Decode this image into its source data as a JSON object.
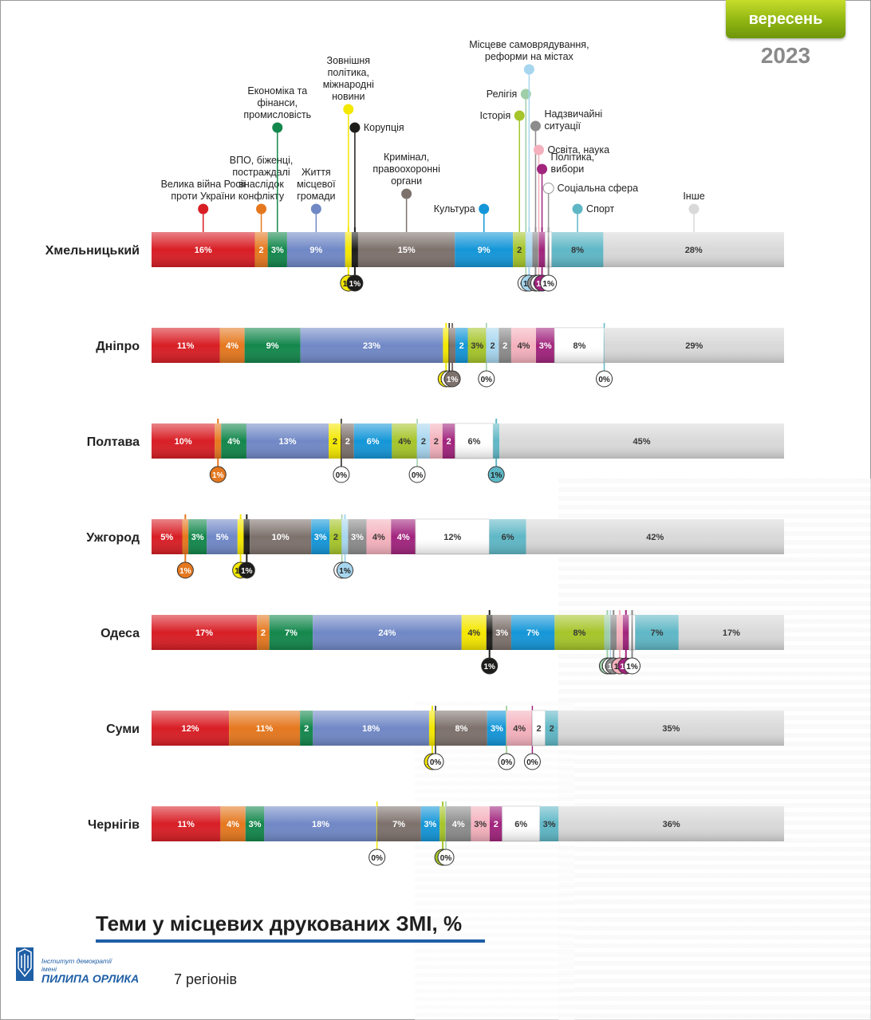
{
  "header": {
    "month": "вересень",
    "year": "2023"
  },
  "title": "Теми у місцевих друкованих ЗМІ, %",
  "subtitle": "7 регіонів",
  "logo": {
    "line1": "Інститут демократії",
    "line2": "імені",
    "name": "ПИЛИПА ОРЛИКА"
  },
  "colors": {
    "war": "#d81e25",
    "vpo": "#e5781f",
    "economy": "#13874c",
    "community": "#7088c6",
    "foreign": "#f4e700",
    "corruption": "#1d1d1b",
    "crime": "#7d716c",
    "culture": "#1496d8",
    "history": "#a6c52a",
    "religion": "#9fcfa8",
    "selfgov": "#a7d6ef",
    "emergency": "#8c8c8c",
    "education": "#f4b1bd",
    "politics": "#a1247d",
    "social": "#ffffff",
    "sport": "#5fb7c6",
    "other": "#d9d9d9"
  },
  "chart_data": {
    "type": "bar",
    "stacked": true,
    "orientation": "horizontal",
    "title": "Теми у місцевих друкованих ЗМІ, %",
    "subtitle": "7 регіонів",
    "legend": [
      {
        "key": "war",
        "label": "Велика війна Росії проти України"
      },
      {
        "key": "vpo",
        "label": "ВПО, біженці, постраждалі внаслідок конфлікту"
      },
      {
        "key": "economy",
        "label": "Економіка та фінанси, промисловість"
      },
      {
        "key": "community",
        "label": "Життя місцевої громади"
      },
      {
        "key": "foreign",
        "label": "Зовнішня політика, міжнародні новини"
      },
      {
        "key": "corruption",
        "label": "Корупція"
      },
      {
        "key": "crime",
        "label": "Кримінал, правоохоронні органи"
      },
      {
        "key": "culture",
        "label": "Культура"
      },
      {
        "key": "history",
        "label": "Історія"
      },
      {
        "key": "religion",
        "label": "Релігія"
      },
      {
        "key": "selfgov",
        "label": "Місцеве самоврядування, реформи на містах"
      },
      {
        "key": "emergency",
        "label": "Надзвичайні ситуації"
      },
      {
        "key": "education",
        "label": "Освіта, наука"
      },
      {
        "key": "politics",
        "label": "Політика, вибори"
      },
      {
        "key": "social",
        "label": "Соціальна сфера"
      },
      {
        "key": "sport",
        "label": "Спорт"
      },
      {
        "key": "other",
        "label": "Інше"
      }
    ],
    "categories": [
      "Хмельницький",
      "Дніпро",
      "Полтава",
      "Ужгород",
      "Одеса",
      "Суми",
      "Чернігів"
    ],
    "series": [
      {
        "key": "war",
        "values": [
          16,
          11,
          10,
          5,
          17,
          12,
          11
        ]
      },
      {
        "key": "vpo",
        "values": [
          2,
          4,
          1,
          1,
          2,
          11,
          4
        ]
      },
      {
        "key": "economy",
        "values": [
          3,
          9,
          4,
          3,
          7,
          2,
          3
        ]
      },
      {
        "key": "community",
        "values": [
          9,
          23,
          13,
          5,
          24,
          18,
          18
        ]
      },
      {
        "key": "foreign",
        "values": [
          1,
          1,
          2,
          1,
          4,
          1,
          0
        ]
      },
      {
        "key": "corruption",
        "values": [
          1,
          0,
          0,
          1,
          1,
          0,
          0
        ]
      },
      {
        "key": "crime",
        "values": [
          15,
          1,
          2,
          10,
          3,
          8,
          7
        ]
      },
      {
        "key": "culture",
        "values": [
          9,
          2,
          6,
          3,
          7,
          3,
          3
        ]
      },
      {
        "key": "history",
        "values": [
          2,
          3,
          4,
          2,
          8,
          0,
          1
        ]
      },
      {
        "key": "religion",
        "values": [
          0,
          0,
          0,
          0,
          1,
          0,
          0
        ]
      },
      {
        "key": "selfgov",
        "values": [
          1,
          2,
          2,
          1,
          0,
          0,
          0
        ]
      },
      {
        "key": "emergency",
        "values": [
          1,
          2,
          0,
          3,
          1,
          0,
          4
        ]
      },
      {
        "key": "education",
        "values": [
          0,
          4,
          2,
          4,
          1,
          4,
          3
        ]
      },
      {
        "key": "politics",
        "values": [
          1,
          3,
          2,
          4,
          1,
          0,
          2
        ]
      },
      {
        "key": "social",
        "values": [
          1,
          8,
          6,
          12,
          1,
          2,
          6
        ]
      },
      {
        "key": "sport",
        "values": [
          8,
          0,
          1,
          6,
          7,
          2,
          3
        ]
      },
      {
        "key": "other",
        "values": [
          28,
          29,
          45,
          42,
          17,
          35,
          36
        ]
      }
    ],
    "labels": [
      [
        "16%",
        "2",
        "3%",
        "9%",
        "1%",
        "1%",
        "15%",
        "9%",
        "2",
        "0%",
        "1%",
        "1%",
        "0%",
        "1%",
        "1%",
        "8%",
        "28%"
      ],
      [
        "11%",
        "4%",
        "9%",
        "23%",
        "1%",
        "0%",
        "1%",
        "2",
        "3%",
        "0%",
        "2",
        "2",
        "4%",
        "3%",
        "8%",
        "0%",
        "29%"
      ],
      [
        "10%",
        "1%",
        "4%",
        "13%",
        "2",
        "0%",
        "2",
        "6%",
        "4%",
        "0%",
        "2",
        "",
        "2",
        "2",
        "6%",
        "1%",
        "45%"
      ],
      [
        "5%",
        "1%",
        "3%",
        "5%",
        "1%",
        "1%",
        "10%",
        "3%",
        "2",
        "0%",
        "1%",
        "3%",
        "4%",
        "4%",
        "12%",
        "6%",
        "42%"
      ],
      [
        "17%",
        "2",
        "7%",
        "24%",
        "4%",
        "1%",
        "3%",
        "7%",
        "8%",
        "1%",
        "0%",
        "1%",
        "1%",
        "1%",
        "1%",
        "7%",
        "17%"
      ],
      [
        "12%",
        "11%",
        "2",
        "18%",
        "1%",
        "0%",
        "8%",
        "3%",
        "0%",
        "0%",
        "",
        "",
        "4%",
        "0%",
        "2",
        "2",
        "35%"
      ],
      [
        "11%",
        "4%",
        "3%",
        "18%",
        "0%",
        "",
        "7%",
        "3%",
        "1%",
        "0%",
        "",
        "4%",
        "3%",
        "2",
        "6%",
        "3%",
        "36%"
      ]
    ],
    "unit": "%"
  }
}
